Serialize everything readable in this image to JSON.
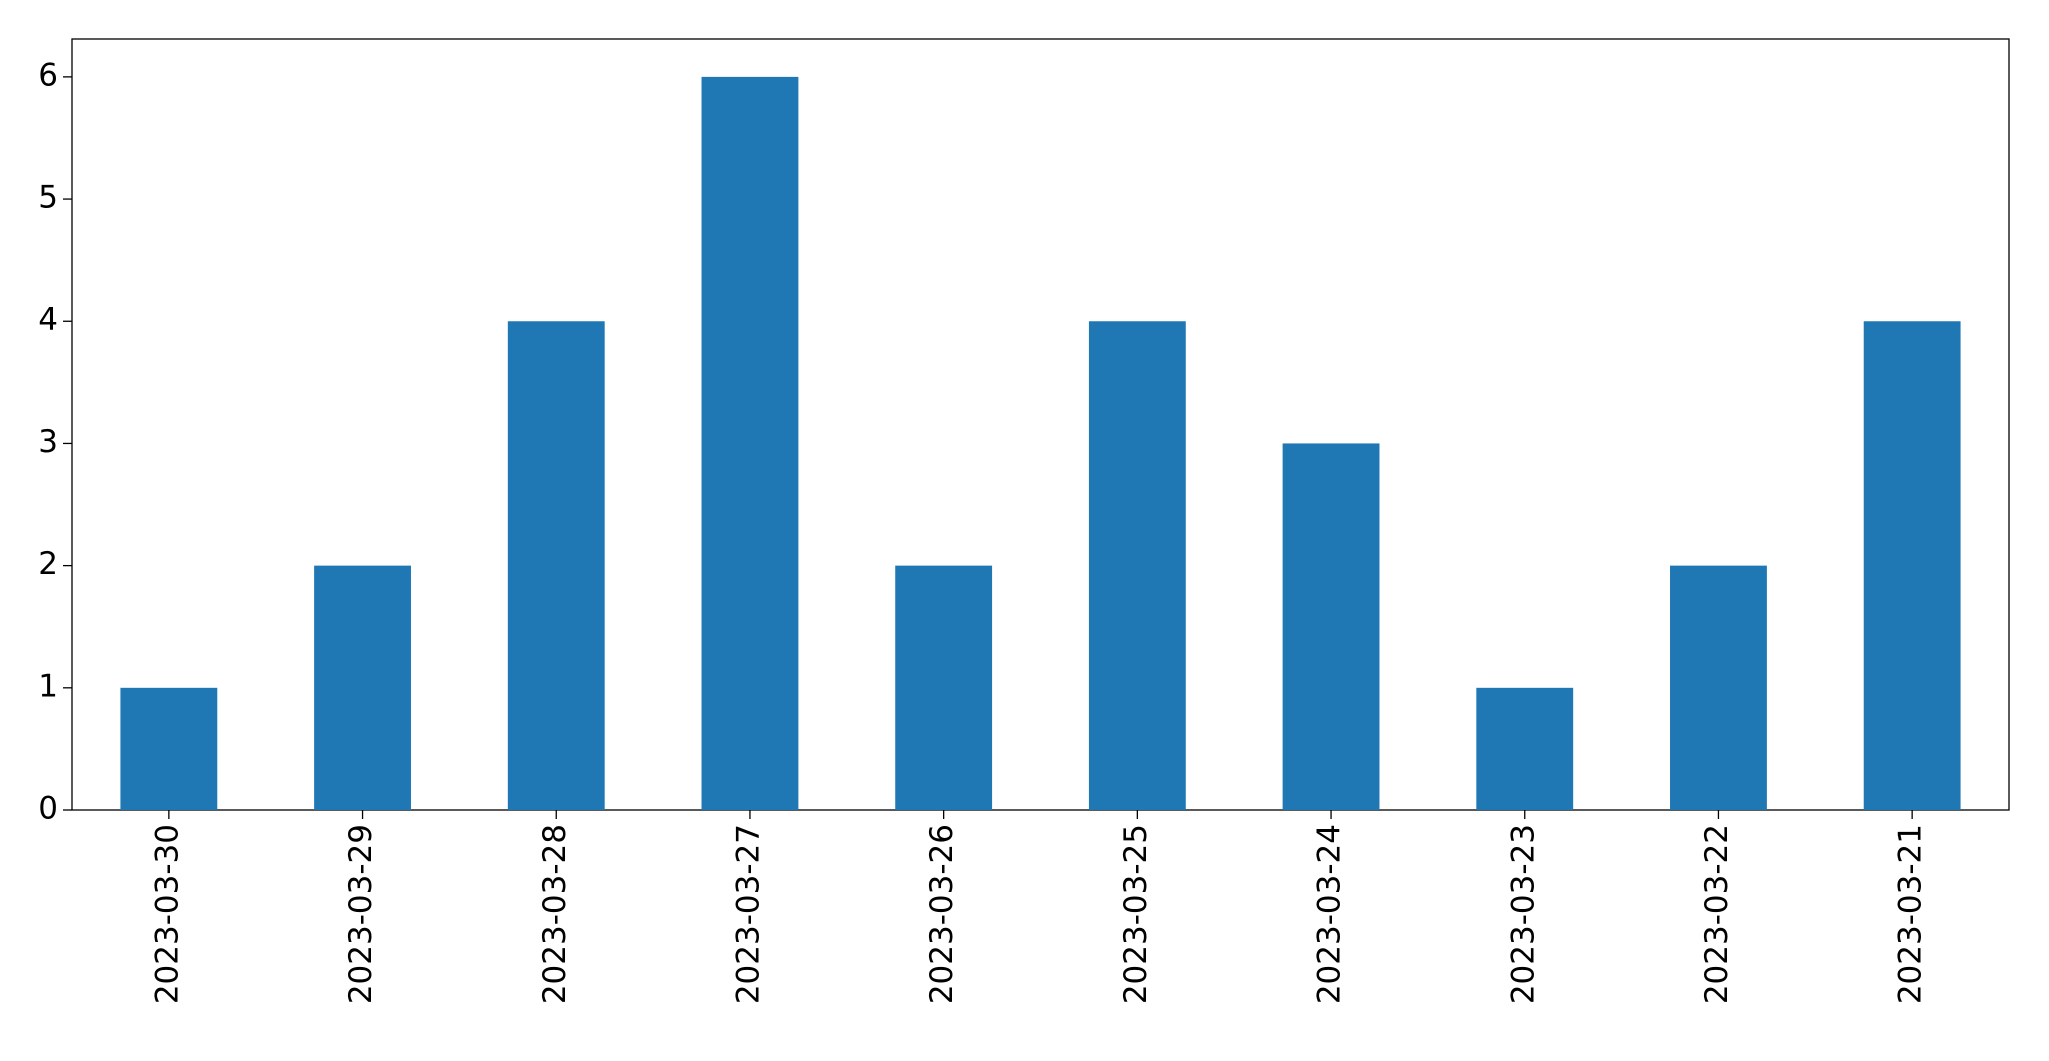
{
  "chart_data": {
    "type": "bar",
    "categories": [
      "2023-03-30",
      "2023-03-29",
      "2023-03-28",
      "2023-03-27",
      "2023-03-26",
      "2023-03-25",
      "2023-03-24",
      "2023-03-23",
      "2023-03-22",
      "2023-03-21"
    ],
    "values": [
      1,
      2,
      4,
      6,
      2,
      4,
      3,
      1,
      2,
      4
    ],
    "color": "#1f77b4",
    "ylim": [
      0,
      6.31
    ],
    "yticks": [
      0,
      1,
      2,
      3,
      4,
      5,
      6
    ],
    "grid": false
  }
}
